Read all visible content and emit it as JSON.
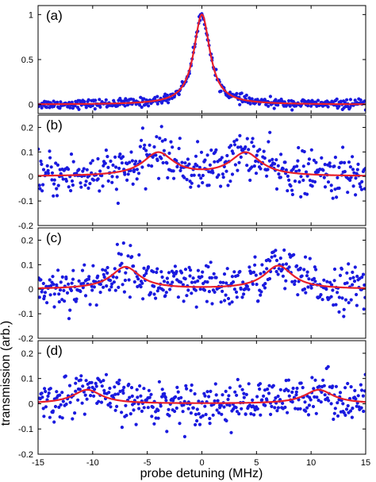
{
  "chart_data": {
    "type": "scatter",
    "xlabel": "probe detuning (MHz)",
    "ylabel": "transmission (arb.)",
    "xlim": [
      -15,
      15
    ],
    "x_ticks": [
      -15,
      -10,
      -5,
      0,
      5,
      10,
      15
    ],
    "colors": {
      "data_points": "#1a1adf",
      "fit_line": "#e8202a"
    },
    "grid": false,
    "panels": [
      {
        "label": "(a)",
        "ylim": [
          -0.1,
          1.1
        ],
        "y_ticks": [
          "0",
          "0.5",
          "1"
        ],
        "y_tick_values": [
          0,
          0.5,
          1
        ],
        "series": [
          {
            "type": "scatter",
            "noise": 0.025,
            "n_points": 420
          },
          {
            "type": "line",
            "peaks": [
              {
                "center": 0.0,
                "height": 1.0,
                "hwhm": 0.9
              }
            ]
          }
        ]
      },
      {
        "label": "(b)",
        "ylim": [
          -0.2,
          0.25
        ],
        "y_ticks": [
          "-0.2",
          "-0.1",
          "0",
          "0.1",
          "0.2"
        ],
        "y_tick_values": [
          -0.2,
          -0.1,
          0,
          0.1,
          0.2
        ],
        "series": [
          {
            "type": "scatter",
            "noise": 0.045,
            "n_points": 420
          },
          {
            "type": "line",
            "peaks": [
              {
                "center": -4.0,
                "height": 0.095,
                "hwhm": 1.7
              },
              {
                "center": 4.0,
                "height": 0.095,
                "hwhm": 1.7
              }
            ]
          }
        ]
      },
      {
        "label": "(c)",
        "ylim": [
          -0.2,
          0.25
        ],
        "y_ticks": [
          "-0.2",
          "-0.1",
          "0",
          "0.1",
          "0.2"
        ],
        "y_tick_values": [
          -0.2,
          -0.1,
          0,
          0.1,
          0.2
        ],
        "series": [
          {
            "type": "scatter",
            "noise": 0.045,
            "n_points": 420
          },
          {
            "type": "line",
            "peaks": [
              {
                "center": -7.0,
                "height": 0.09,
                "hwhm": 1.6
              },
              {
                "center": 7.0,
                "height": 0.095,
                "hwhm": 1.6
              }
            ]
          }
        ]
      },
      {
        "label": "(d)",
        "ylim": [
          -0.2,
          0.25
        ],
        "y_ticks": [
          "-0.2",
          "-0.1",
          "0",
          "0.1",
          "0.2"
        ],
        "y_tick_values": [
          -0.2,
          -0.1,
          0,
          0.1,
          0.2
        ],
        "series": [
          {
            "type": "scatter",
            "noise": 0.04,
            "n_points": 420
          },
          {
            "type": "line",
            "peaks": [
              {
                "center": -10.5,
                "height": 0.055,
                "hwhm": 1.6
              },
              {
                "center": 10.7,
                "height": 0.055,
                "hwhm": 1.6
              }
            ]
          }
        ]
      }
    ]
  }
}
